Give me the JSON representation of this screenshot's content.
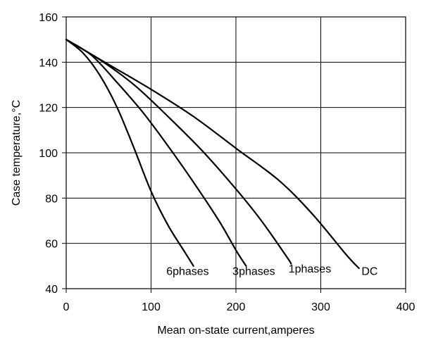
{
  "chart_data": {
    "type": "line",
    "title": "",
    "xlabel": "Mean on-state current,amperes",
    "ylabel": "Case temperature,°C",
    "xlim": [
      0,
      400
    ],
    "ylim": [
      40,
      160
    ],
    "xticks": [
      0,
      100,
      200,
      300,
      400
    ],
    "yticks": [
      40,
      60,
      80,
      100,
      120,
      140,
      160
    ],
    "grid": true,
    "legend": "none",
    "line_color": "#000000",
    "series": [
      {
        "name": "6phases",
        "label_anchor": [
          118,
          48
        ],
        "points": [
          [
            0,
            150
          ],
          [
            20,
            144
          ],
          [
            40,
            134
          ],
          [
            60,
            120
          ],
          [
            80,
            102
          ],
          [
            100,
            83
          ],
          [
            120,
            68
          ],
          [
            140,
            56
          ],
          [
            150,
            50
          ]
        ]
      },
      {
        "name": "3phases",
        "label_anchor": [
          196,
          48
        ],
        "points": [
          [
            0,
            150
          ],
          [
            30,
            143
          ],
          [
            60,
            131
          ],
          [
            90,
            118
          ],
          [
            120,
            103
          ],
          [
            150,
            87
          ],
          [
            180,
            70
          ],
          [
            200,
            57
          ],
          [
            212,
            50
          ]
        ]
      },
      {
        "name": "1phases",
        "label_anchor": [
          262,
          49
        ],
        "points": [
          [
            0,
            150
          ],
          [
            40,
            141
          ],
          [
            80,
            130
          ],
          [
            120,
            116
          ],
          [
            160,
            101
          ],
          [
            200,
            84
          ],
          [
            230,
            70
          ],
          [
            260,
            54
          ],
          [
            265,
            51
          ]
        ]
      },
      {
        "name": "DC",
        "label_anchor": [
          348,
          48
        ],
        "points": [
          [
            0,
            150
          ],
          [
            50,
            139
          ],
          [
            100,
            128
          ],
          [
            150,
            116
          ],
          [
            200,
            102
          ],
          [
            250,
            88
          ],
          [
            290,
            73
          ],
          [
            330,
            55
          ],
          [
            345,
            49
          ]
        ]
      }
    ]
  }
}
